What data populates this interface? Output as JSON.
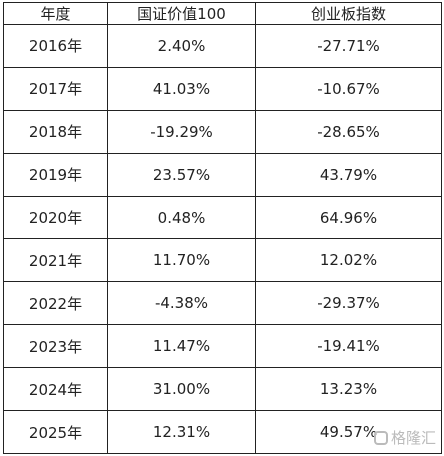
{
  "table": {
    "headers": [
      "年度",
      "国证价值100",
      "创业板指数"
    ],
    "rows": [
      [
        "2016年",
        "2.40%",
        "-27.71%"
      ],
      [
        "2017年",
        "41.03%",
        "-10.67%"
      ],
      [
        "2018年",
        "-19.29%",
        "-28.65%"
      ],
      [
        "2019年",
        "23.57%",
        "43.79%"
      ],
      [
        "2020年",
        "0.48%",
        "64.96%"
      ],
      [
        "2021年",
        "11.70%",
        "12.02%"
      ],
      [
        "2022年",
        "-4.38%",
        "-29.37%"
      ],
      [
        "2023年",
        "11.47%",
        "-19.41%"
      ],
      [
        "2024年",
        "31.00%",
        "13.23%"
      ],
      [
        "2025年",
        "12.31%",
        "49.57%"
      ]
    ]
  },
  "watermark": "格隆汇"
}
